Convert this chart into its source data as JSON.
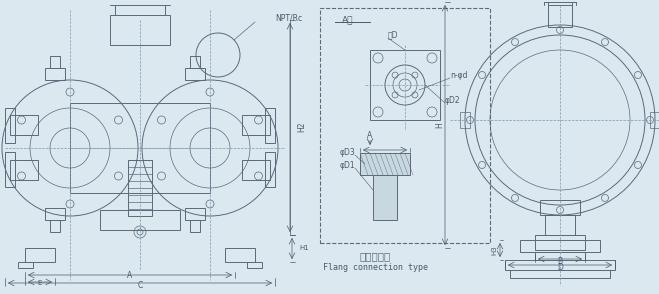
{
  "bg_color": "#dce8f0",
  "line_color": "#5a6a7a",
  "dim_color": "#4a5a6a",
  "dashed_color": "#7a9ab0",
  "title_cn": "法兰式连接",
  "title_en": "Flang connection type",
  "labels": {
    "NPT_Rc": "NPT/Rc",
    "H2": "H2",
    "H1": "H1",
    "E": "E",
    "A": "A",
    "C": "C",
    "A_view": "A向",
    "fang_D": "方D",
    "n_phi_d": "n-φd",
    "phi_D2": "φD2",
    "phi_D3": "φD3",
    "phi_D1": "φD1",
    "H": "H",
    "H3": "H3",
    "B": "B",
    "D": "D"
  }
}
